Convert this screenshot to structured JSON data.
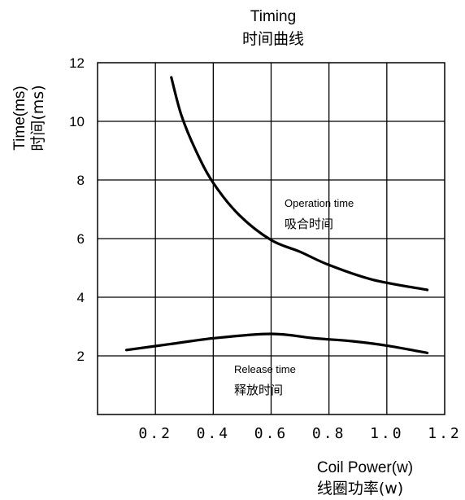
{
  "chart_data": {
    "type": "line",
    "title": "Timing",
    "subtitle": "时间曲线",
    "ylabel": "Time(ms)",
    "ylabel_cn": "时间(ms)",
    "xlabel": "Coil Power(w)",
    "xlabel_cn": "线圈功率(w)",
    "xlim": [
      0,
      1.2
    ],
    "ylim": [
      0,
      12
    ],
    "x_ticks": [
      0.2,
      0.4,
      0.6,
      0.8,
      1.0,
      1.2
    ],
    "x_tick_labels": [
      "0.2",
      "0.4",
      "0.6",
      "0.8",
      "1.0",
      "1.2"
    ],
    "y_ticks": [
      2,
      4,
      6,
      8,
      10,
      12
    ],
    "y_tick_labels": [
      "2",
      "4",
      "6",
      "8",
      "10",
      "12"
    ],
    "grid": true,
    "series": [
      {
        "name": "Operation time",
        "name_cn": "吸合时间",
        "x": [
          0.255,
          0.29,
          0.34,
          0.4,
          0.49,
          0.6,
          0.7,
          0.8,
          0.95,
          1.14
        ],
        "y": [
          11.5,
          10.2,
          9.0,
          7.9,
          6.8,
          5.95,
          5.55,
          5.1,
          4.6,
          4.25
        ]
      },
      {
        "name": "Release time",
        "name_cn": "释放时间",
        "x": [
          0.1,
          0.25,
          0.4,
          0.6,
          0.75,
          0.88,
          1.0,
          1.14
        ],
        "y": [
          2.2,
          2.4,
          2.6,
          2.75,
          2.6,
          2.5,
          2.35,
          2.1
        ]
      }
    ]
  }
}
